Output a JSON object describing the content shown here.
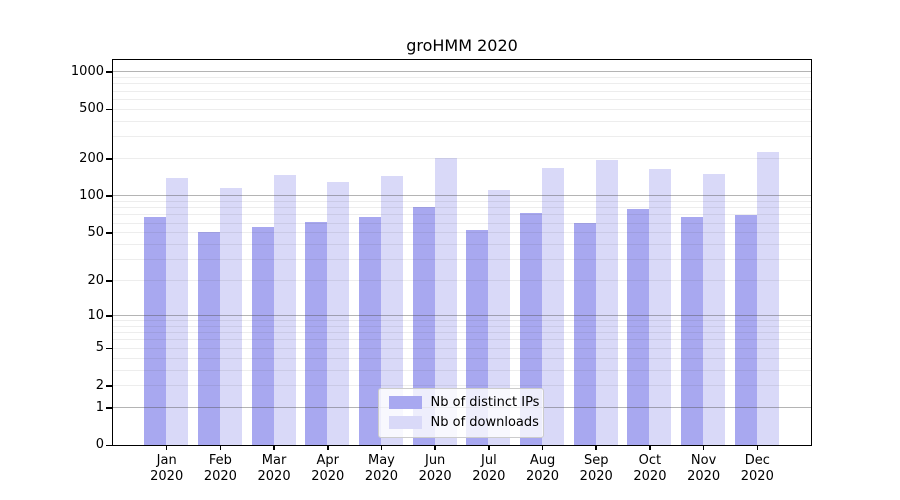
{
  "figure": {
    "background": "#ffffff"
  },
  "chart_data": {
    "type": "bar",
    "title": "groHMM 2020",
    "categories": [
      "Jan 2020",
      "Feb 2020",
      "Mar 2020",
      "Apr 2020",
      "May 2020",
      "Jun 2020",
      "Jul 2020",
      "Aug 2020",
      "Sep 2020",
      "Oct 2020",
      "Nov 2020",
      "Dec 2020"
    ],
    "x_tick_months": [
      "Jan",
      "Feb",
      "Mar",
      "Apr",
      "May",
      "Jun",
      "Jul",
      "Aug",
      "Sep",
      "Oct",
      "Nov",
      "Dec"
    ],
    "x_tick_year": "2020",
    "series": [
      {
        "name": "Nb of distinct IPs",
        "color": "#a8a8f0",
        "values": [
          67,
          50,
          55,
          61,
          67,
          80,
          52,
          72,
          60,
          77,
          67,
          69
        ]
      },
      {
        "name": "Nb of downloads",
        "color": "#d9d9f8",
        "values": [
          137,
          114,
          145,
          128,
          143,
          202,
          110,
          166,
          193,
          163,
          148,
          226
        ]
      }
    ],
    "y_scale": "log1p",
    "ylabel": "",
    "xlabel": "",
    "y_ticks": [
      0,
      1,
      2,
      5,
      10,
      20,
      50,
      100,
      200,
      500,
      1000
    ],
    "y_major_gridlines": [
      1,
      10,
      100,
      1000
    ],
    "y_minor_gridlines": [
      2,
      3,
      4,
      5,
      6,
      7,
      8,
      9,
      20,
      30,
      40,
      50,
      60,
      70,
      80,
      90,
      200,
      300,
      400,
      500,
      600,
      700,
      800,
      900
    ],
    "ylim": [
      0,
      1300
    ],
    "grid": "on, drawn above bars",
    "legend_position": "lower center, inside axes"
  },
  "colors": {
    "distinct_ips_bar": "#a8a8f0",
    "downloads_bar": "#d9d9f8",
    "grid_major": "#b3b3b3",
    "grid_minor": "#ededed",
    "axis_spine": "#000000",
    "legend_border": "#cccccc"
  }
}
